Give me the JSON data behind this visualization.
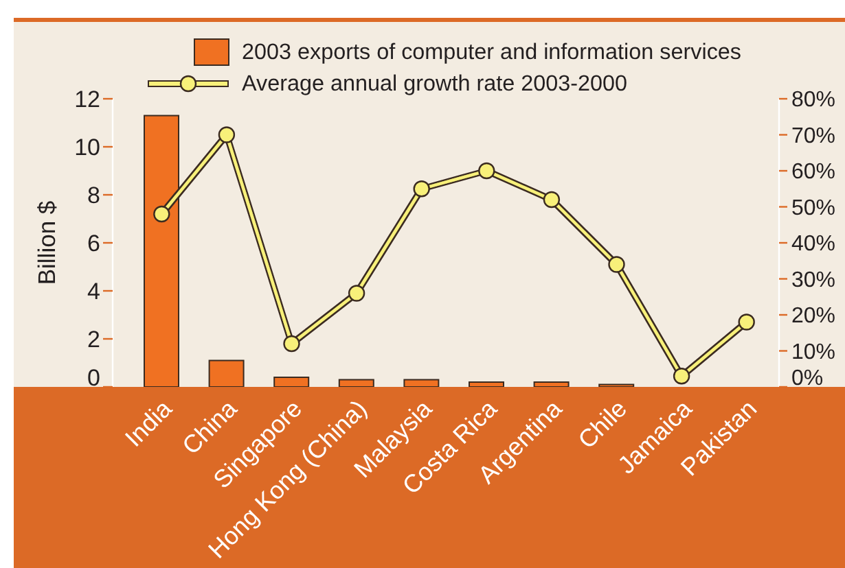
{
  "chart_data": {
    "type": "bar",
    "ylabel": "Billion $",
    "categories": [
      "India",
      "China",
      "Singapore",
      "Hong Kong (China)",
      "Malaysia",
      "Costa Rica",
      "Argentina",
      "Chile",
      "Jamaica",
      "Pakistan"
    ],
    "series": [
      {
        "name": "2003 exports of computer and information services",
        "color": "#f07122",
        "values": [
          11.3,
          1.1,
          0.4,
          0.3,
          0.3,
          0.2,
          0.2,
          0.1,
          null,
          null
        ]
      },
      {
        "name": "Average annual growth rate 2003-2000",
        "type": "line",
        "axis": "y2",
        "color": "#f8f07a",
        "values": [
          48,
          70,
          12,
          26,
          55,
          60,
          52,
          34,
          3,
          18
        ]
      }
    ],
    "ylim": [
      0,
      12
    ],
    "yticks": [
      0,
      2,
      4,
      6,
      8,
      10,
      12
    ],
    "y2lim": [
      0,
      80
    ],
    "y2ticks": [
      {
        "value": 0,
        "label": "0%"
      },
      {
        "value": 10,
        "label": "10%"
      },
      {
        "value": 20,
        "label": "20%"
      },
      {
        "value": 30,
        "label": "30%"
      },
      {
        "value": 40,
        "label": "40%"
      },
      {
        "value": 50,
        "label": "50%"
      },
      {
        "value": 60,
        "label": "60%"
      },
      {
        "value": 70,
        "label": "70%"
      },
      {
        "value": 80,
        "label": "80%"
      }
    ],
    "legend": "top",
    "marker": "circle"
  }
}
